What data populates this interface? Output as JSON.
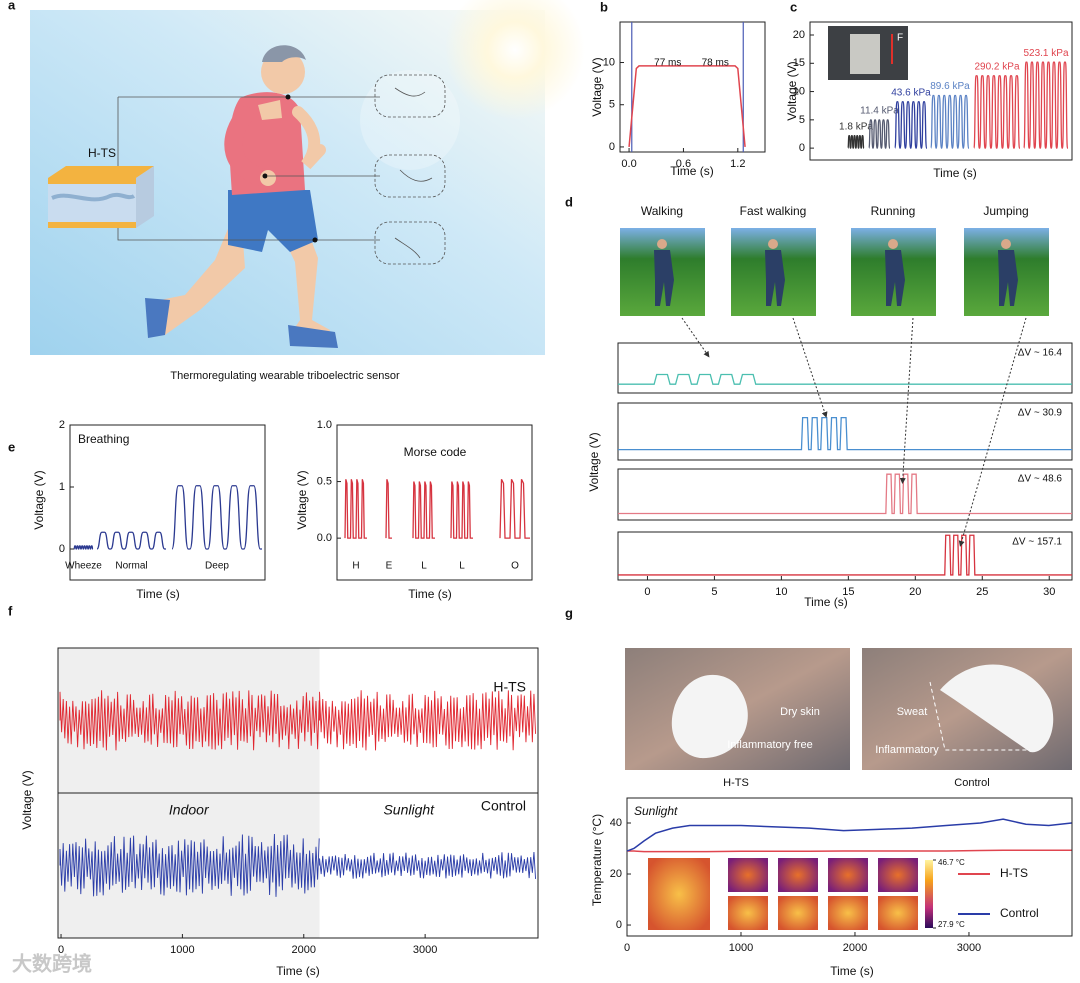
{
  "panel_labels": [
    "a",
    "b",
    "c",
    "d",
    "e",
    "f",
    "g"
  ],
  "illustration": {
    "label": "H-TS",
    "caption": "Thermoregulating wearable triboelectric sensor"
  },
  "watermark": "大数跨境",
  "chart_data": [
    {
      "type": "line",
      "xlabel": "Time (s)",
      "ylabel": "Voltage (V)",
      "annotations": [
        "77 ms",
        "78 ms"
      ],
      "x": [
        0,
        0.08,
        0.11,
        0.6,
        1.17,
        1.2,
        1.28
      ],
      "series": [
        {
          "color": "#e0454f",
          "values": [
            0,
            9.3,
            9.6,
            9.6,
            9.6,
            9.3,
            0
          ]
        }
      ],
      "vlines": [
        0.03,
        1.26
      ],
      "vline_color": "#4a5bb5",
      "xlim": [
        -0.1,
        1.5
      ],
      "xticks": [
        {
          "value": 0,
          "label": "0.0"
        },
        0.6,
        1.2
      ],
      "ylim": [
        -0.6,
        14.8
      ],
      "yticks": [
        0,
        5,
        10
      ]
    },
    {
      "type": "pulse",
      "shape": "sine",
      "label_position": "above",
      "xlabel": "Time (s)",
      "ylabel": "Voltage (V)",
      "inset_label": "F",
      "ylim": [
        -2.1,
        22.3
      ],
      "yticks": [
        0,
        5,
        10,
        15,
        20
      ],
      "series": [
        {
          "name": "1.8 kPa",
          "color": "#333333",
          "values": [
            2.2
          ],
          "pulses": 6
        },
        {
          "name": "11.4 kPa",
          "color": "#555a70",
          "values": [
            5
          ],
          "pulses": 5
        },
        {
          "name": "43.6 kPa",
          "color": "#2f3f9e",
          "values": [
            8.2
          ],
          "pulses": 6
        },
        {
          "name": "89.6 kPa",
          "color": "#5b82c4",
          "values": [
            9.3
          ],
          "pulses": 7
        },
        {
          "name": "290.2 kPa",
          "color": "#e0454f",
          "values": [
            12.8
          ],
          "pulses": 8
        },
        {
          "name": "523.1 kPa",
          "color": "#e0454f",
          "values": [
            15.2
          ],
          "pulses": 8
        }
      ]
    },
    {
      "type": "stack",
      "xlabel": "Time (s)",
      "ylabel": "Voltage (V)",
      "xlim": [
        -2.2,
        31.7
      ],
      "xticks": [
        0,
        5,
        10,
        15,
        20,
        25,
        30
      ],
      "series": [
        {
          "name": "Walking",
          "color": "#4bbfb0",
          "values": [
            16.4
          ],
          "value_labels": [
            "ΔV ~ 16.4"
          ],
          "xrange": [
            0.5,
            8.5
          ],
          "pulses": 5,
          "ylim": [
            -15,
            70
          ]
        },
        {
          "name": "Fast walking",
          "color": "#4a8fd0",
          "values": [
            30.9
          ],
          "value_labels": [
            "ΔV ~ 30.9"
          ],
          "xrange": [
            11.5,
            15.1
          ],
          "pulses": 5,
          "ylim": [
            -10,
            45
          ]
        },
        {
          "name": "Running",
          "color": "#e47a86",
          "values": [
            48.6
          ],
          "value_labels": [
            "ΔV ~ 48.6"
          ],
          "xrange": [
            17.8,
            20.3
          ],
          "pulses": 4,
          "ylim": [
            -8,
            55
          ]
        },
        {
          "name": "Jumping",
          "color": "#d6333f",
          "values": [
            157.1
          ],
          "value_labels": [
            "ΔV ~ 157.1"
          ],
          "xrange": [
            22.2,
            24.6
          ],
          "pulses": 4,
          "ylim": [
            -20,
            170
          ]
        }
      ]
    },
    {
      "type": "pulse",
      "shape": "sine",
      "label_position": "below",
      "title": "Breathing",
      "color": "#2b3990",
      "xlabel": "Time (s)",
      "ylabel": "Voltage (V)",
      "ylim": [
        -0.5,
        2
      ],
      "yticks": [
        0,
        1,
        2
      ],
      "series": [
        {
          "name": "Wheeze",
          "values": [
            0.05
          ],
          "pulses": 8
        },
        {
          "name": "Normal",
          "values": [
            0.27
          ],
          "pulses": 5
        },
        {
          "name": "Deep",
          "values": [
            1.02
          ],
          "pulses": 5
        }
      ]
    },
    {
      "type": "pulse",
      "shape": "spike",
      "label_position": "below",
      "title": "Morse code",
      "color": "#d6333f",
      "xlabel": "Time (s)",
      "ylabel": "Voltage (V)",
      "ylim": [
        -0.37,
        1
      ],
      "yticks": [
        {
          "value": 0,
          "label": "0.0"
        },
        0.5,
        {
          "value": 1,
          "label": "1.0"
        }
      ],
      "series": [
        {
          "name": "H",
          "values": [
            0.52
          ],
          "pulses": 4
        },
        {
          "name": "E",
          "values": [
            0.52
          ],
          "pulses": 1
        },
        {
          "name": "L",
          "values": [
            0.5
          ],
          "pulses": 4
        },
        {
          "name": "L",
          "values": [
            0.5
          ],
          "pulses": 4
        },
        {
          "name": "O",
          "values": [
            0.52
          ],
          "pulses": 3
        }
      ]
    },
    {
      "type": "noise",
      "xlabel": "Time (s)",
      "ylabel": "Voltage (V)",
      "regions": [
        "Indoor",
        "Sunlight"
      ],
      "region_split": 2130,
      "xlim": [
        -25,
        3930
      ],
      "xticks": [
        0,
        1000,
        2000,
        3000
      ],
      "ylim": [
        -2.4,
        2.4
      ],
      "series": [
        {
          "name": "H-TS",
          "color": "#e0262f",
          "values": [
            1,
            1
          ]
        },
        {
          "name": "Control",
          "color": "#2a3ca8",
          "values": [
            1.05,
            0.45
          ]
        }
      ]
    },
    {
      "type": "line",
      "title": "Sunlight",
      "xlabel": "Time (s)",
      "ylabel": "Temperature (°C)",
      "photo_labels": [
        "Dry skin",
        "Inflammatory free",
        "Sweat",
        "Inflammatory"
      ],
      "photo_captions": [
        "H-TS",
        "Control"
      ],
      "colorbar": [
        {
          "value": 46.7,
          "label": "46.7 °C"
        },
        {
          "value": 27.9,
          "label": "27.9 °C"
        }
      ],
      "x": [
        0,
        60,
        150,
        250,
        400,
        550,
        700,
        1000,
        1300,
        1600,
        1900,
        2200,
        2500,
        2800,
        3100,
        3300,
        3500,
        3700,
        3900
      ],
      "series": [
        {
          "name": "H-TS",
          "color": "#e0454f",
          "values": [
            29,
            29,
            28.8,
            28.8,
            28.8,
            28.8,
            28.8,
            28.9,
            28.9,
            28.9,
            29,
            29,
            29,
            29,
            29.2,
            29.3,
            29.3,
            29.3,
            29.3
          ]
        },
        {
          "name": "Control",
          "color": "#2a3ca8",
          "values": [
            29,
            30,
            33,
            36,
            38,
            39,
            39,
            39,
            38.5,
            38,
            37,
            37.5,
            38,
            39,
            40,
            41.5,
            39.5,
            39,
            40
          ]
        }
      ],
      "xlim": [
        0,
        3904
      ],
      "xticks": [
        0,
        1000,
        2000,
        3000
      ],
      "ylim": [
        -4.3,
        49.8
      ],
      "yticks": [
        0,
        20,
        40
      ]
    }
  ]
}
